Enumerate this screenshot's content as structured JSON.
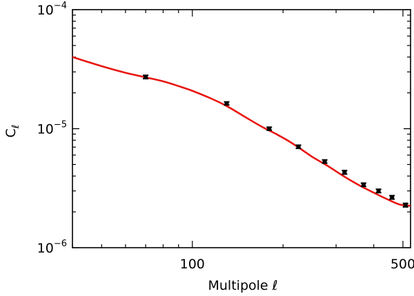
{
  "chart_data": {
    "type": "line",
    "title": "",
    "xlabel": "Multipole ℓ",
    "ylabel_main": "C",
    "ylabel_sub": "ℓ",
    "x_scale": "log",
    "y_scale": "log",
    "xlim": [
      40,
      530
    ],
    "ylim": [
      1e-06,
      0.0001
    ],
    "grid": false,
    "legend": "none",
    "x_ticks": [
      {
        "value": 100,
        "label": "100"
      },
      {
        "value": 500,
        "label": "500"
      }
    ],
    "y_ticks": [
      {
        "value": 0.0001,
        "base": "10",
        "exp": "−4"
      },
      {
        "value": 1e-05,
        "base": "10",
        "exp": "−5"
      },
      {
        "value": 1e-06,
        "base": "10",
        "exp": "−6"
      }
    ],
    "series": [
      {
        "kind": "model_curve",
        "color": "#e8140f",
        "x": [
          40,
          50,
          60,
          70,
          80,
          90,
          100,
          115,
          130,
          150,
          170,
          190,
          210,
          230,
          250,
          280,
          310,
          340,
          370,
          400,
          430,
          460,
          490,
          530
        ],
        "y": [
          4e-05,
          3.35e-05,
          2.95e-05,
          2.7e-05,
          2.5e-05,
          2.28e-05,
          2.08e-05,
          1.8e-05,
          1.55e-05,
          1.25e-05,
          1.04e-05,
          9e-06,
          7.8e-06,
          6.7e-06,
          5.8e-06,
          4.9e-06,
          4.15e-06,
          3.6e-06,
          3.2e-06,
          2.9e-06,
          2.65e-06,
          2.45e-06,
          2.3e-06,
          2.25e-06
        ]
      },
      {
        "kind": "measurements",
        "color": "#000000",
        "points": [
          {
            "x": 70,
            "y": 2.72e-05,
            "err": 9e-07
          },
          {
            "x": 130,
            "y": 1.63e-05,
            "err": 5e-07
          },
          {
            "x": 180,
            "y": 1e-05,
            "err": 3e-07
          },
          {
            "x": 225,
            "y": 7.05e-06,
            "err": 2.2e-07
          },
          {
            "x": 275,
            "y": 5.3e-06,
            "err": 1.7e-07
          },
          {
            "x": 320,
            "y": 4.3e-06,
            "err": 1.5e-07
          },
          {
            "x": 370,
            "y": 3.38e-06,
            "err": 1.1e-07
          },
          {
            "x": 415,
            "y": 3e-06,
            "err": 1e-07
          },
          {
            "x": 460,
            "y": 2.65e-06,
            "err": 9e-08
          },
          {
            "x": 510,
            "y": 2.28e-06,
            "err": 8e-08
          }
        ]
      }
    ]
  }
}
